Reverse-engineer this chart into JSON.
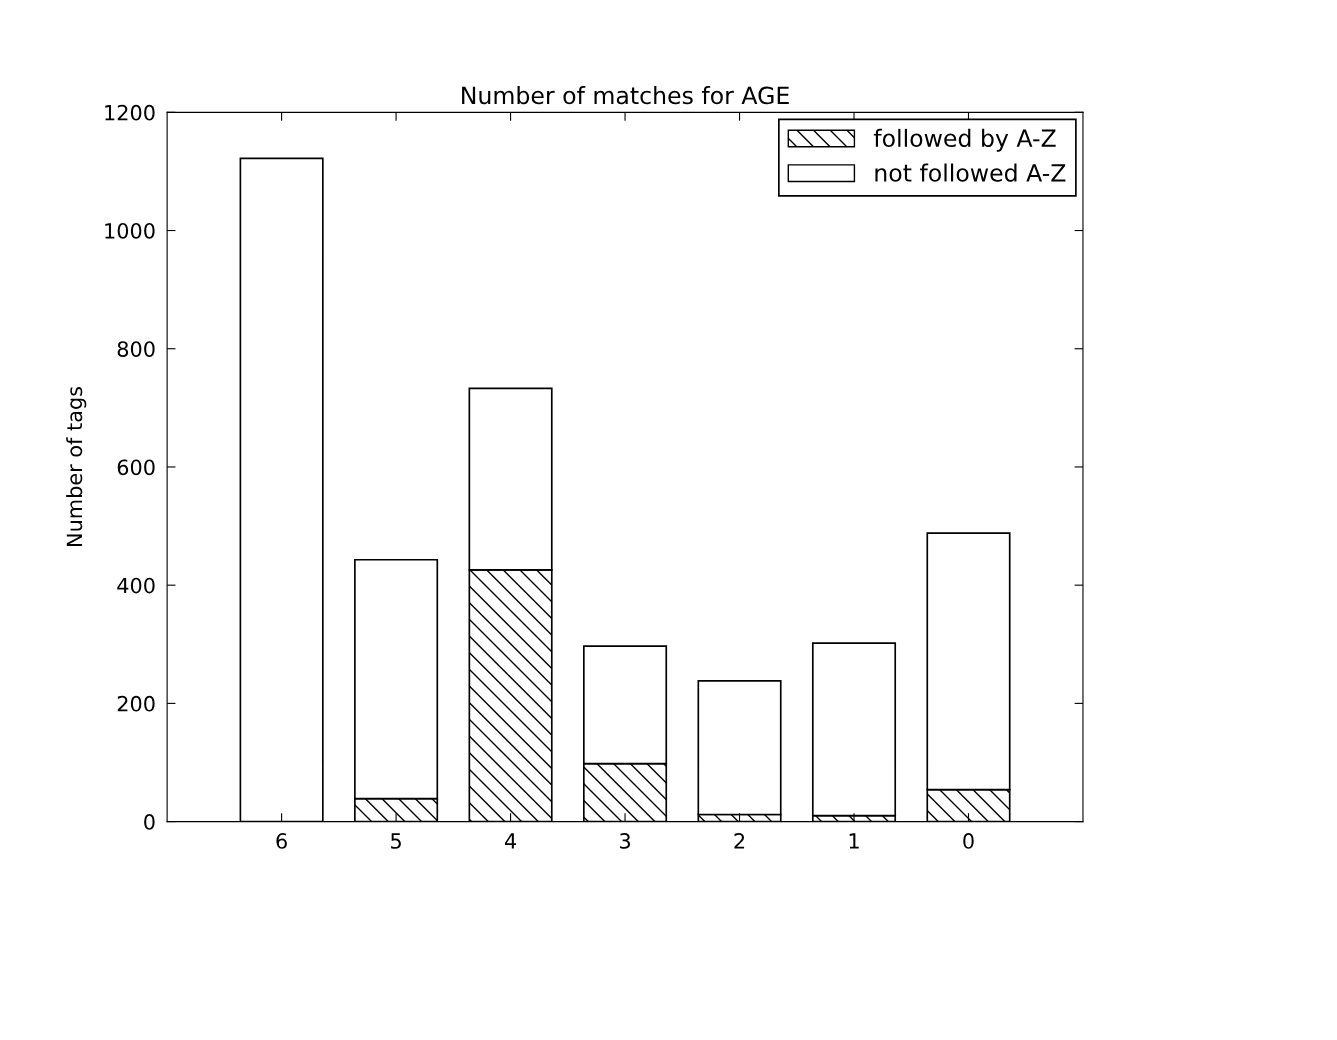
{
  "chart_data": {
    "type": "bar",
    "title": "Number of matches for AGE",
    "ylabel": "Number of tags",
    "categories": [
      "6",
      "5",
      "4",
      "3",
      "2",
      "1",
      "0"
    ],
    "stacked": true,
    "series": [
      {
        "name": "followed by A-Z",
        "color": "#000000",
        "values": [
          0,
          39,
          426,
          98,
          12,
          10,
          54
        ]
      },
      {
        "name": "not followed A-Z",
        "color": "#ffffff",
        "values": [
          1122,
          404,
          307,
          199,
          226,
          292,
          434
        ]
      }
    ],
    "ylim": [
      0,
      1200
    ],
    "yticks": [
      0,
      200,
      400,
      600,
      800,
      1000,
      1200
    ],
    "grid": false,
    "legend": "top right"
  }
}
